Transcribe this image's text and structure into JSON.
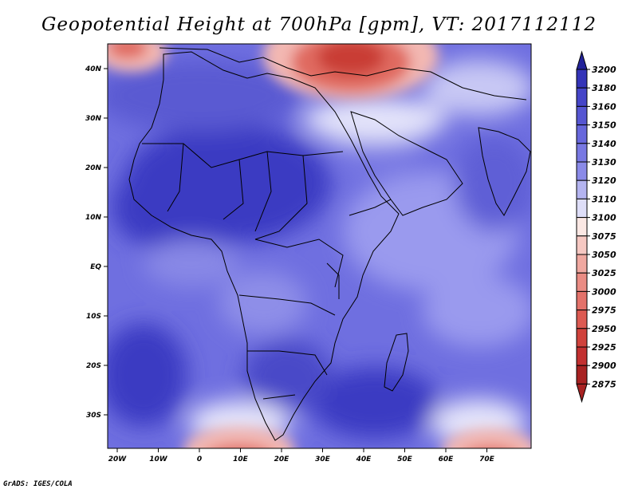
{
  "title": "Geopotential Height at 700hPa [gpm], VT: 2017112112",
  "credit": "GrADS: IGES/COLA",
  "lon_ticks": [
    "20W",
    "10W",
    "0",
    "10E",
    "20E",
    "30E",
    "40E",
    "50E",
    "60E",
    "70E"
  ],
  "lat_ticks": [
    "40N",
    "30N",
    "20N",
    "10N",
    "EQ",
    "10S",
    "20S",
    "30S"
  ],
  "colorbar": {
    "levels": [
      "3200",
      "3180",
      "3160",
      "3150",
      "3140",
      "3130",
      "3120",
      "3110",
      "3100",
      "3075",
      "3050",
      "3025",
      "3000",
      "2975",
      "2950",
      "2925",
      "2900",
      "2875"
    ],
    "colors": [
      "#23239a",
      "#3434b8",
      "#4545c8",
      "#5656d2",
      "#6767dc",
      "#7878e2",
      "#8a8ae8",
      "#b4b4f0",
      "#dedef8",
      "#fbe8e4",
      "#f6c8c2",
      "#f0a8a0",
      "#ea8c84",
      "#e3726a",
      "#dc5a52",
      "#d0423c",
      "#c23030",
      "#a82222"
    ]
  },
  "map_colors": {
    "background": "#6f6fe0",
    "deep": "#3a3ac2",
    "mid": "#5a5ad2",
    "light": "#9a9aee",
    "pale": "#e4e4fa",
    "white": "#ffffff",
    "pink": "#f3b8b2",
    "red": "#e06a60",
    "darkred": "#c93c36"
  }
}
